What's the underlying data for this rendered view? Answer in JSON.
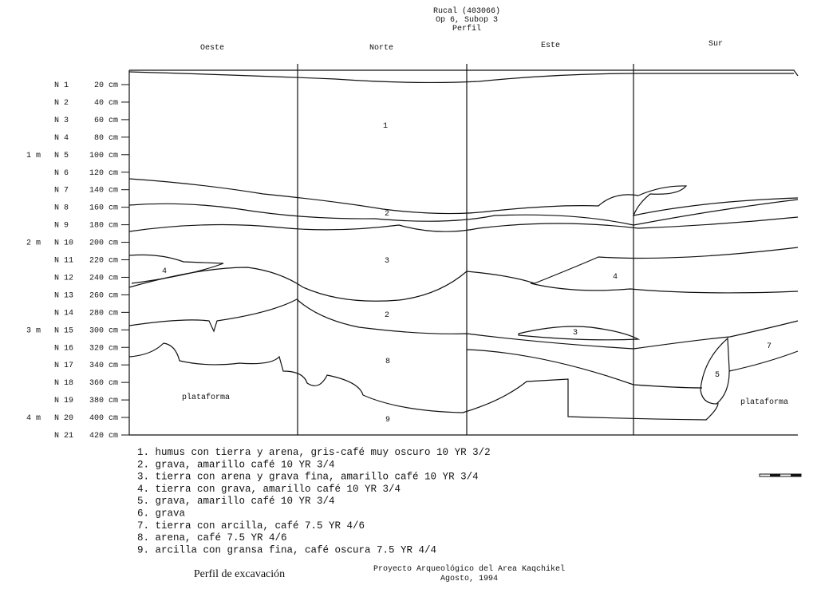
{
  "header": {
    "lines": [
      "Rucal (403066)",
      "Op 6, Subop 3",
      "Perfil"
    ]
  },
  "walls": [
    "Oeste",
    "Norte",
    "Este",
    "Sur"
  ],
  "depth": {
    "rows": [
      {
        "n": "N 1",
        "cm": "20 cm"
      },
      {
        "n": "N 2",
        "cm": "40 cm"
      },
      {
        "n": "N 3",
        "cm": "60 cm"
      },
      {
        "n": "N 4",
        "cm": "80 cm"
      },
      {
        "m": "1 m",
        "n": "N 5",
        "cm": "100 cm"
      },
      {
        "n": "N 6",
        "cm": "120 cm"
      },
      {
        "n": "N 7",
        "cm": "140 cm"
      },
      {
        "n": "N 8",
        "cm": "160 cm"
      },
      {
        "n": "N 9",
        "cm": "180 cm"
      },
      {
        "m": "2 m",
        "n": "N 10",
        "cm": "200 cm"
      },
      {
        "n": "N 11",
        "cm": "220 cm"
      },
      {
        "n": "N 12",
        "cm": "240 cm"
      },
      {
        "n": "N 13",
        "cm": "260 cm"
      },
      {
        "n": "N 14",
        "cm": "280 cm"
      },
      {
        "m": "3 m",
        "n": "N 15",
        "cm": "300 cm"
      },
      {
        "n": "N 16",
        "cm": "320 cm"
      },
      {
        "n": "N 17",
        "cm": "340 cm"
      },
      {
        "n": "N 18",
        "cm": "360 cm"
      },
      {
        "n": "N 19",
        "cm": "380 cm"
      },
      {
        "m": "4 m",
        "n": "N 20",
        "cm": "400 cm"
      },
      {
        "n": "N 21",
        "cm": "420 cm"
      }
    ]
  },
  "profile": {
    "labels": [
      "1",
      "2",
      "3",
      "4",
      "4",
      "2",
      "3",
      "8",
      "5",
      "7",
      "9",
      "plataforma",
      "plataforma"
    ]
  },
  "legend": [
    "1. humus con tierra y arena, gris-café muy oscuro 10 YR 3/2",
    "2. grava, amarillo café 10 YR 3/4",
    "3. tierra con arena y grava fina, amarillo café 10 YR 3/4",
    "4. tierra con grava, amarillo café 10 YR 3/4",
    "5. grava, amarillo café 10 YR 3/4",
    "6. grava",
    "7. tierra con arcilla, café 7.5 YR 4/6",
    "8. arena, café 7.5 YR 4/6",
    "9. arcilla con gransa fina, café oscura 7.5 YR 4/4"
  ],
  "footer": {
    "caption": "Perfil de excavación",
    "project": "Proyecto Arqueológico del Area Kaqchikel",
    "date": "Agosto, 1994"
  }
}
